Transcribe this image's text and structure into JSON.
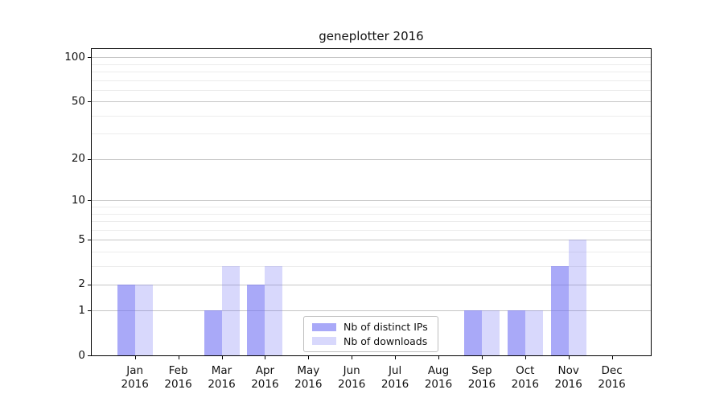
{
  "chart_data": {
    "type": "bar",
    "title": "geneplotter 2016",
    "categories": [
      "Jan",
      "Feb",
      "Mar",
      "Apr",
      "May",
      "Jun",
      "Jul",
      "Aug",
      "Sep",
      "Oct",
      "Nov",
      "Dec"
    ],
    "category_year": "2016",
    "series": [
      {
        "name": "Nb of distinct IPs",
        "color": "rgba(112,112,244,0.60)",
        "values": [
          2,
          0,
          1,
          2,
          0,
          0,
          0,
          0,
          1,
          1,
          3,
          0
        ]
      },
      {
        "name": "Nb of downloads",
        "color": "rgba(112,112,244,0.27)",
        "values": [
          2,
          0,
          3,
          3,
          0,
          0,
          0,
          0,
          1,
          1,
          5,
          0
        ]
      }
    ],
    "y_axis": {
      "scale": "log1p",
      "ticks": [
        0,
        1,
        2,
        5,
        10,
        20,
        50,
        100
      ],
      "minor_ticks": [
        3,
        4,
        6,
        7,
        8,
        9,
        30,
        40,
        60,
        70,
        80,
        90
      ],
      "max": 114
    },
    "grid": true,
    "legend_position": "bottom-center"
  },
  "colors": {
    "major_grid": "#c6c6c6",
    "minor_grid": "#ececec",
    "spine": "#000000",
    "legend_border": "#bfbfbf",
    "background": "#ffffff"
  }
}
